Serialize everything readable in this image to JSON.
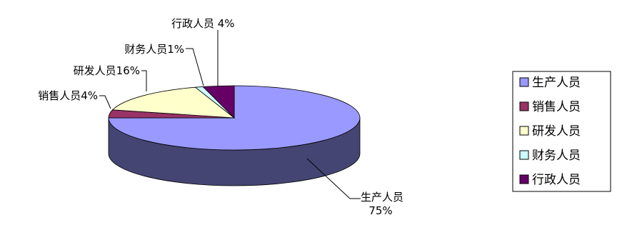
{
  "chart_data": {
    "type": "pie",
    "title": "",
    "categories": [
      "生产人员",
      "销售人员",
      "研发人员",
      "财务人员",
      "行政人员"
    ],
    "values": [
      75,
      4,
      16,
      1,
      4
    ],
    "series": [
      {
        "values": [
          75,
          4,
          16,
          1,
          4
        ]
      }
    ],
    "colors": [
      "#9999ff",
      "#993366",
      "#ffffcc",
      "#ccffff",
      "#660066"
    ],
    "data_labels": [
      {
        "text": "生产人员",
        "text2": "75%"
      },
      {
        "text": "销售人员4%"
      },
      {
        "text": "研发人员16%"
      },
      {
        "text": "财务人员1%"
      },
      {
        "text": "行政人员 4%"
      }
    ],
    "legend": {
      "position": "right",
      "entries": [
        "生产人员",
        "销售人员",
        "研发人员",
        "财务人员",
        "行政人员"
      ]
    },
    "style": "3d-pie"
  }
}
